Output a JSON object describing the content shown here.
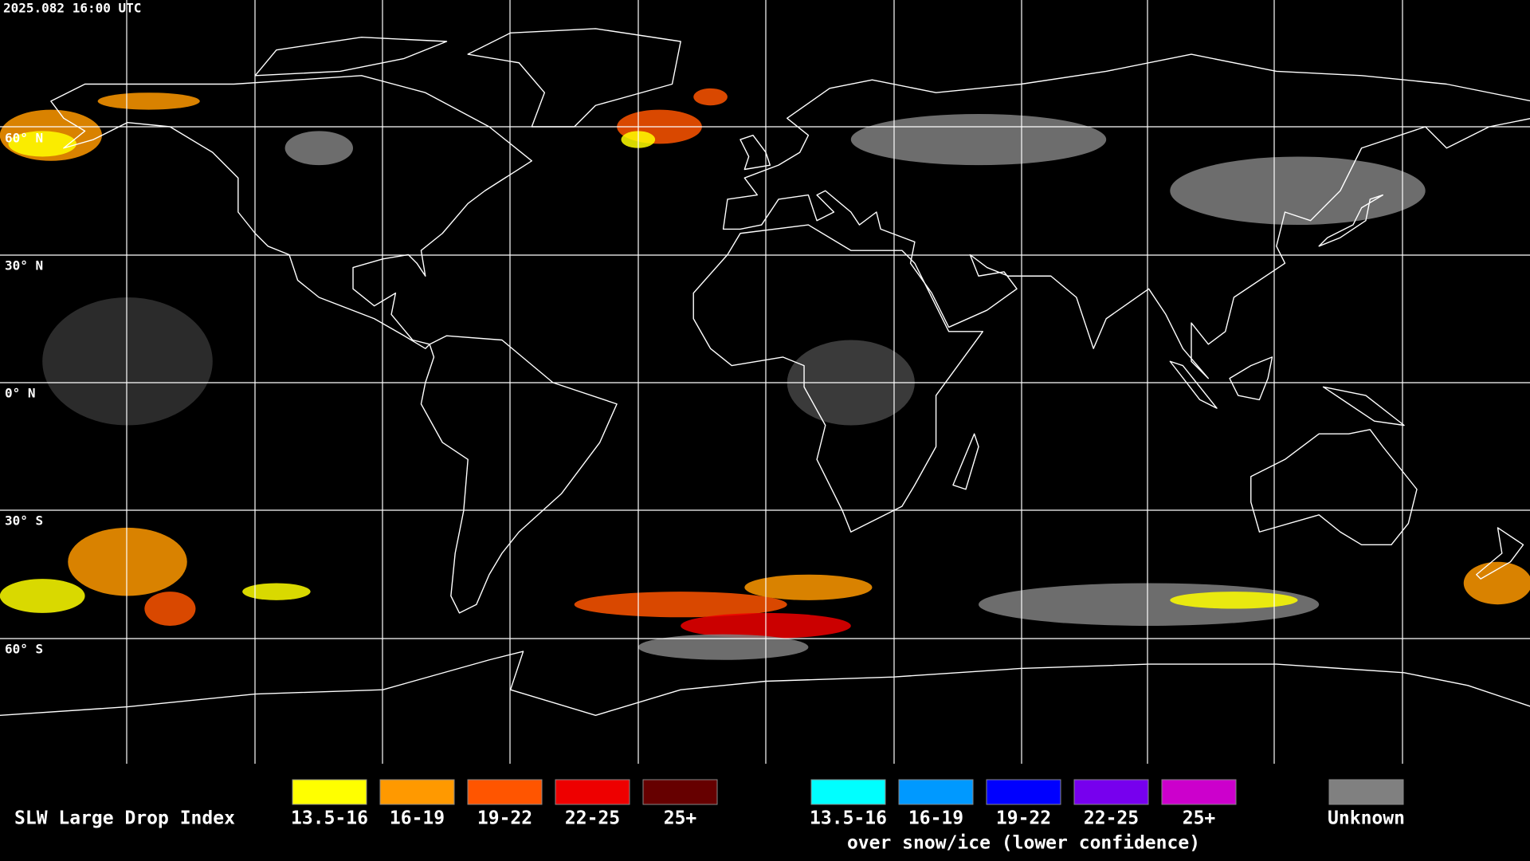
{
  "header": {
    "timestamp": "2025.082 16:00 UTC"
  },
  "map": {
    "latitude_labels": [
      "60° N",
      "30° N",
      "0° N",
      "30° S",
      "60° S"
    ]
  },
  "legend": {
    "title": "SLW Large Drop Index",
    "groups": [
      {
        "items": [
          {
            "label": "13.5-16",
            "color": "#ffff00"
          },
          {
            "label": "16-19",
            "color": "#ff9900"
          },
          {
            "label": "19-22",
            "color": "#ff5500"
          },
          {
            "label": "22-25",
            "color": "#ee0000"
          },
          {
            "label": "25+",
            "color": "#660000"
          }
        ]
      },
      {
        "items": [
          {
            "label": "13.5-16",
            "color": "#00ffff"
          },
          {
            "label": "16-19",
            "color": "#0099ff"
          },
          {
            "label": "19-22",
            "color": "#0000ff"
          },
          {
            "label": "22-25",
            "color": "#7700ee"
          },
          {
            "label": "25+",
            "color": "#cc00cc"
          }
        ],
        "caption": "over snow/ice (lower confidence)"
      },
      {
        "items": [
          {
            "label": "Unknown",
            "color": "#808080"
          }
        ]
      }
    ]
  }
}
